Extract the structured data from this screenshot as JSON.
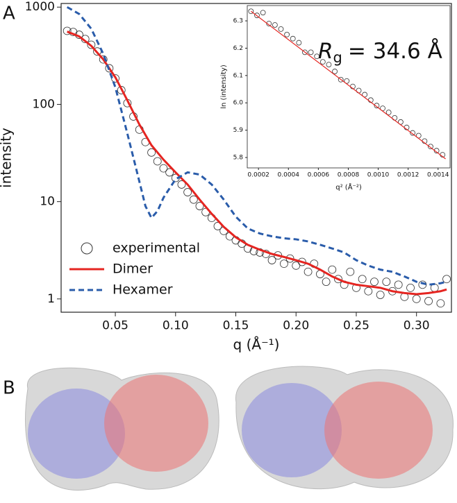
{
  "panel_labels": [
    "A",
    "B"
  ],
  "chart_data": [
    {
      "type": "line",
      "x_label": "q (Å⁻¹)",
      "y_label": "intensity",
      "ylog": true,
      "xlim": [
        0.005,
        0.329
      ],
      "ylim": [
        0.73,
        1090
      ],
      "xticks": [
        0.05,
        {
          "value": 0.1,
          "label": "0.10"
        },
        0.15,
        {
          "value": 0.2,
          "label": "0.20"
        },
        0.25,
        {
          "value": 0.3,
          "label": "0.30"
        }
      ],
      "yticks": [
        1,
        10,
        100,
        1000
      ],
      "legend": "lower left",
      "series": [
        {
          "name": "experimental",
          "mode": "markers",
          "color": "#333333",
          "x": [
            0.01,
            0.015,
            0.02,
            0.025,
            0.03,
            0.035,
            0.04,
            0.045,
            0.05,
            0.055,
            0.06,
            0.065,
            0.07,
            0.075,
            0.08,
            0.085,
            0.09,
            0.095,
            0.1,
            0.105,
            0.11,
            0.115,
            0.12,
            0.125,
            0.13,
            0.135,
            0.14,
            0.145,
            0.15,
            0.155,
            0.16,
            0.165,
            0.17,
            0.175,
            0.18,
            0.185,
            0.19,
            0.195,
            0.2,
            0.205,
            0.21,
            0.215,
            0.22,
            0.225,
            0.23,
            0.235,
            0.24,
            0.245,
            0.25,
            0.255,
            0.26,
            0.265,
            0.27,
            0.275,
            0.28,
            0.285,
            0.29,
            0.295,
            0.3,
            0.305,
            0.31,
            0.315,
            0.32,
            0.325
          ],
          "values": [
            570,
            555,
            520,
            470,
            410,
            350,
            290,
            235,
            185,
            140,
            103,
            75,
            55,
            41,
            32,
            26,
            22,
            20,
            17.5,
            15,
            12.5,
            10.5,
            9,
            7.8,
            6.8,
            5.6,
            5.0,
            4.4,
            4.0,
            3.7,
            3.3,
            3.1,
            3.0,
            2.9,
            2.5,
            2.8,
            2.3,
            2.6,
            2.2,
            2.4,
            1.9,
            2.3,
            1.8,
            1.5,
            2.0,
            1.6,
            1.4,
            1.9,
            1.3,
            1.6,
            1.2,
            1.5,
            1.1,
            1.5,
            1.2,
            1.4,
            1.05,
            1.3,
            1.0,
            1.4,
            0.95,
            1.3,
            0.9,
            1.6
          ]
        },
        {
          "name": "Dimer",
          "mode": "line",
          "dash": false,
          "color": "#e52521",
          "x": [
            0.01,
            0.02,
            0.03,
            0.04,
            0.05,
            0.06,
            0.07,
            0.08,
            0.09,
            0.1,
            0.11,
            0.12,
            0.13,
            0.14,
            0.15,
            0.16,
            0.17,
            0.18,
            0.19,
            0.2,
            0.21,
            0.22,
            0.23,
            0.24,
            0.25,
            0.26,
            0.27,
            0.28,
            0.29,
            0.3,
            0.31,
            0.32,
            0.325
          ],
          "values": [
            560,
            500,
            400,
            290,
            190,
            110,
            62,
            38,
            27,
            20,
            15,
            10.5,
            7.5,
            5.5,
            4.3,
            3.6,
            3.2,
            2.9,
            2.7,
            2.5,
            2.3,
            2.0,
            1.7,
            1.5,
            1.4,
            1.35,
            1.3,
            1.2,
            1.15,
            1.12,
            1.15,
            1.2,
            1.25
          ]
        },
        {
          "name": "Hexamer",
          "mode": "line",
          "dash": true,
          "color": "#2a5caa",
          "x": [
            0.01,
            0.02,
            0.03,
            0.04,
            0.05,
            0.06,
            0.07,
            0.075,
            0.08,
            0.085,
            0.09,
            0.1,
            0.11,
            0.12,
            0.13,
            0.14,
            0.15,
            0.16,
            0.17,
            0.18,
            0.19,
            0.2,
            0.21,
            0.22,
            0.23,
            0.24,
            0.25,
            0.26,
            0.27,
            0.28,
            0.29,
            0.3,
            0.31,
            0.32,
            0.325
          ],
          "values": [
            1000,
            850,
            600,
            330,
            150,
            50,
            16,
            9,
            6.8,
            8,
            11,
            17,
            20,
            19,
            15,
            10.5,
            7,
            5.3,
            4.7,
            4.4,
            4.2,
            4.1,
            3.9,
            3.6,
            3.3,
            3.0,
            2.5,
            2.2,
            2.0,
            1.9,
            1.7,
            1.5,
            1.4,
            1.45,
            1.5
          ]
        }
      ]
    },
    {
      "type": "line",
      "x_label": "q² (Å⁻²)",
      "y_label": "ln (intensity)",
      "ylog": false,
      "annotation": {
        "symbol": "R",
        "subscript": "g",
        "text": "= 34.6 Å"
      },
      "xlim": [
        0.000125,
        0.00148
      ],
      "ylim": [
        5.762,
        6.356
      ],
      "xticks": [
        0.0002,
        0.0004,
        0.0006,
        0.0008,
        {
          "value": 0.001,
          "label": "0.0010"
        },
        0.0012,
        0.0014
      ],
      "yticks": [
        5.8,
        5.9,
        {
          "value": 6.0,
          "label": "6.0"
        },
        6.1,
        6.2,
        6.3
      ],
      "series": [
        {
          "mode": "markers",
          "color": "#333333",
          "x": [
            0.00015,
            0.00019,
            0.00023,
            0.00027,
            0.00031,
            0.00035,
            0.00039,
            0.00043,
            0.00047,
            0.00051,
            0.00055,
            0.00059,
            0.00063,
            0.00067,
            0.00071,
            0.00075,
            0.00079,
            0.00083,
            0.00087,
            0.00091,
            0.00095,
            0.00099,
            0.00103,
            0.00107,
            0.00111,
            0.00115,
            0.00119,
            0.00123,
            0.00127,
            0.00131,
            0.00135,
            0.00139,
            0.00143
          ],
          "values": [
            6.335,
            6.32,
            6.33,
            6.29,
            6.285,
            6.27,
            6.25,
            6.235,
            6.22,
            6.185,
            6.185,
            6.17,
            6.15,
            6.14,
            6.115,
            6.085,
            6.08,
            6.06,
            6.045,
            6.03,
            6.01,
            5.99,
            5.98,
            5.965,
            5.945,
            5.93,
            5.91,
            5.89,
            5.88,
            5.86,
            5.84,
            5.825,
            5.81
          ]
        },
        {
          "mode": "line",
          "dash": false,
          "color": "#e52521",
          "x": [
            0.00015,
            0.00145
          ],
          "values": [
            6.335,
            5.795
          ]
        }
      ]
    }
  ]
}
